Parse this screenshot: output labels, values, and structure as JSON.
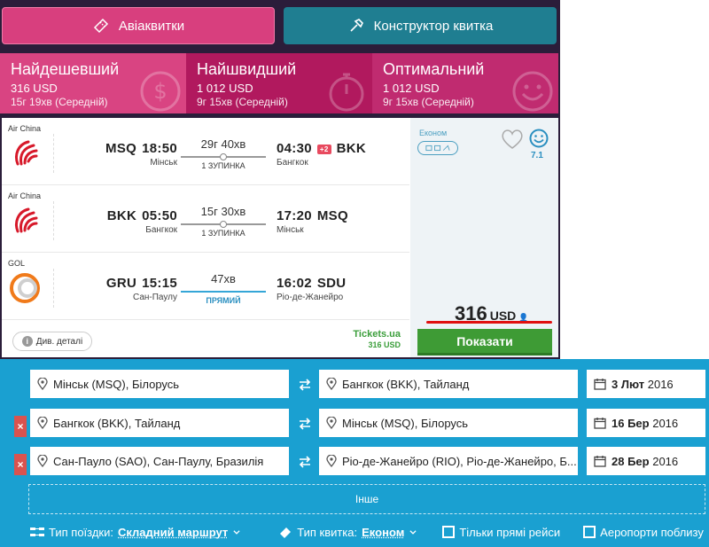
{
  "topbar": {
    "flights_label": "Авіаквитки",
    "builder_label": "Конструктор квитка"
  },
  "sort_tabs": [
    {
      "title": "Найдешевший",
      "price": "316 USD",
      "duration": "15г 19хв (Середній)"
    },
    {
      "title": "Найшвидший",
      "price": "1 012 USD",
      "duration": "9г 15хв (Середній)"
    },
    {
      "title": "Оптимальний",
      "price": "1 012 USD",
      "duration": "9г 15хв (Середній)"
    }
  ],
  "result": {
    "legs": [
      {
        "airline": "Air China",
        "dep_code": "MSQ",
        "dep_time": "18:50",
        "dep_city": "Мінськ",
        "duration": "29г 40хв",
        "stops": "1 ЗУПИНКА",
        "arr_time": "04:30",
        "day_badge": "+2",
        "arr_code": "BKK",
        "arr_city": "Бангкок"
      },
      {
        "airline": "Air China",
        "dep_code": "BKK",
        "dep_time": "05:50",
        "dep_city": "Бангкок",
        "duration": "15г 30хв",
        "stops": "1 ЗУПИНКА",
        "arr_time": "17:20",
        "arr_code": "MSQ",
        "arr_city": "Мінськ"
      },
      {
        "airline": "GOL",
        "dep_code": "GRU",
        "dep_time": "15:15",
        "dep_city": "Сан-Паулу",
        "duration": "47хв",
        "stops": "ПРЯМИЙ",
        "arr_time": "16:02",
        "arr_code": "SDU",
        "arr_city": "Ріо-де-Жанейро"
      }
    ],
    "class_label": "Економ",
    "rating": "7.1",
    "price_value": "316",
    "price_currency": "USD",
    "details_label": "Див. деталі",
    "agency_name": "Tickets.ua",
    "agency_price": "316 USD",
    "show_label": "Показати"
  },
  "search": {
    "rows": [
      {
        "from": "Мінськ (MSQ), Білорусь",
        "to": "Бангкок (BKK), Тайланд",
        "date_bold": "3 Лют",
        "date_year": "2016",
        "removable": false
      },
      {
        "from": "Бангкок (BKK), Тайланд",
        "to": "Мінськ (MSQ), Білорусь",
        "date_bold": "16 Бер",
        "date_year": "2016",
        "removable": true
      },
      {
        "from": "Сан-Пауло (SAO), Сан-Паулу, Бразилія",
        "to": "Ріо-де-Жанейро (RIO), Ріо-де-Жанейро, Б...",
        "date_bold": "28 Бер",
        "date_year": "2016",
        "removable": true
      }
    ],
    "remove_glyph": "×",
    "other_label": "Інше",
    "trip_type_label": "Тип поїздки:",
    "trip_type_value": "Складний маршрут",
    "ticket_type_label": "Тип квитка:",
    "ticket_type_value": "Економ",
    "direct_only_label": "Тільки прямі рейси",
    "nearby_airports_label": "Аеропорти поблизу"
  },
  "colors": {
    "brand_pink": "#d83f7e",
    "brand_teal": "#1f7e91",
    "form_blue": "#1aa0d1",
    "show_green": "#3e9b35"
  }
}
